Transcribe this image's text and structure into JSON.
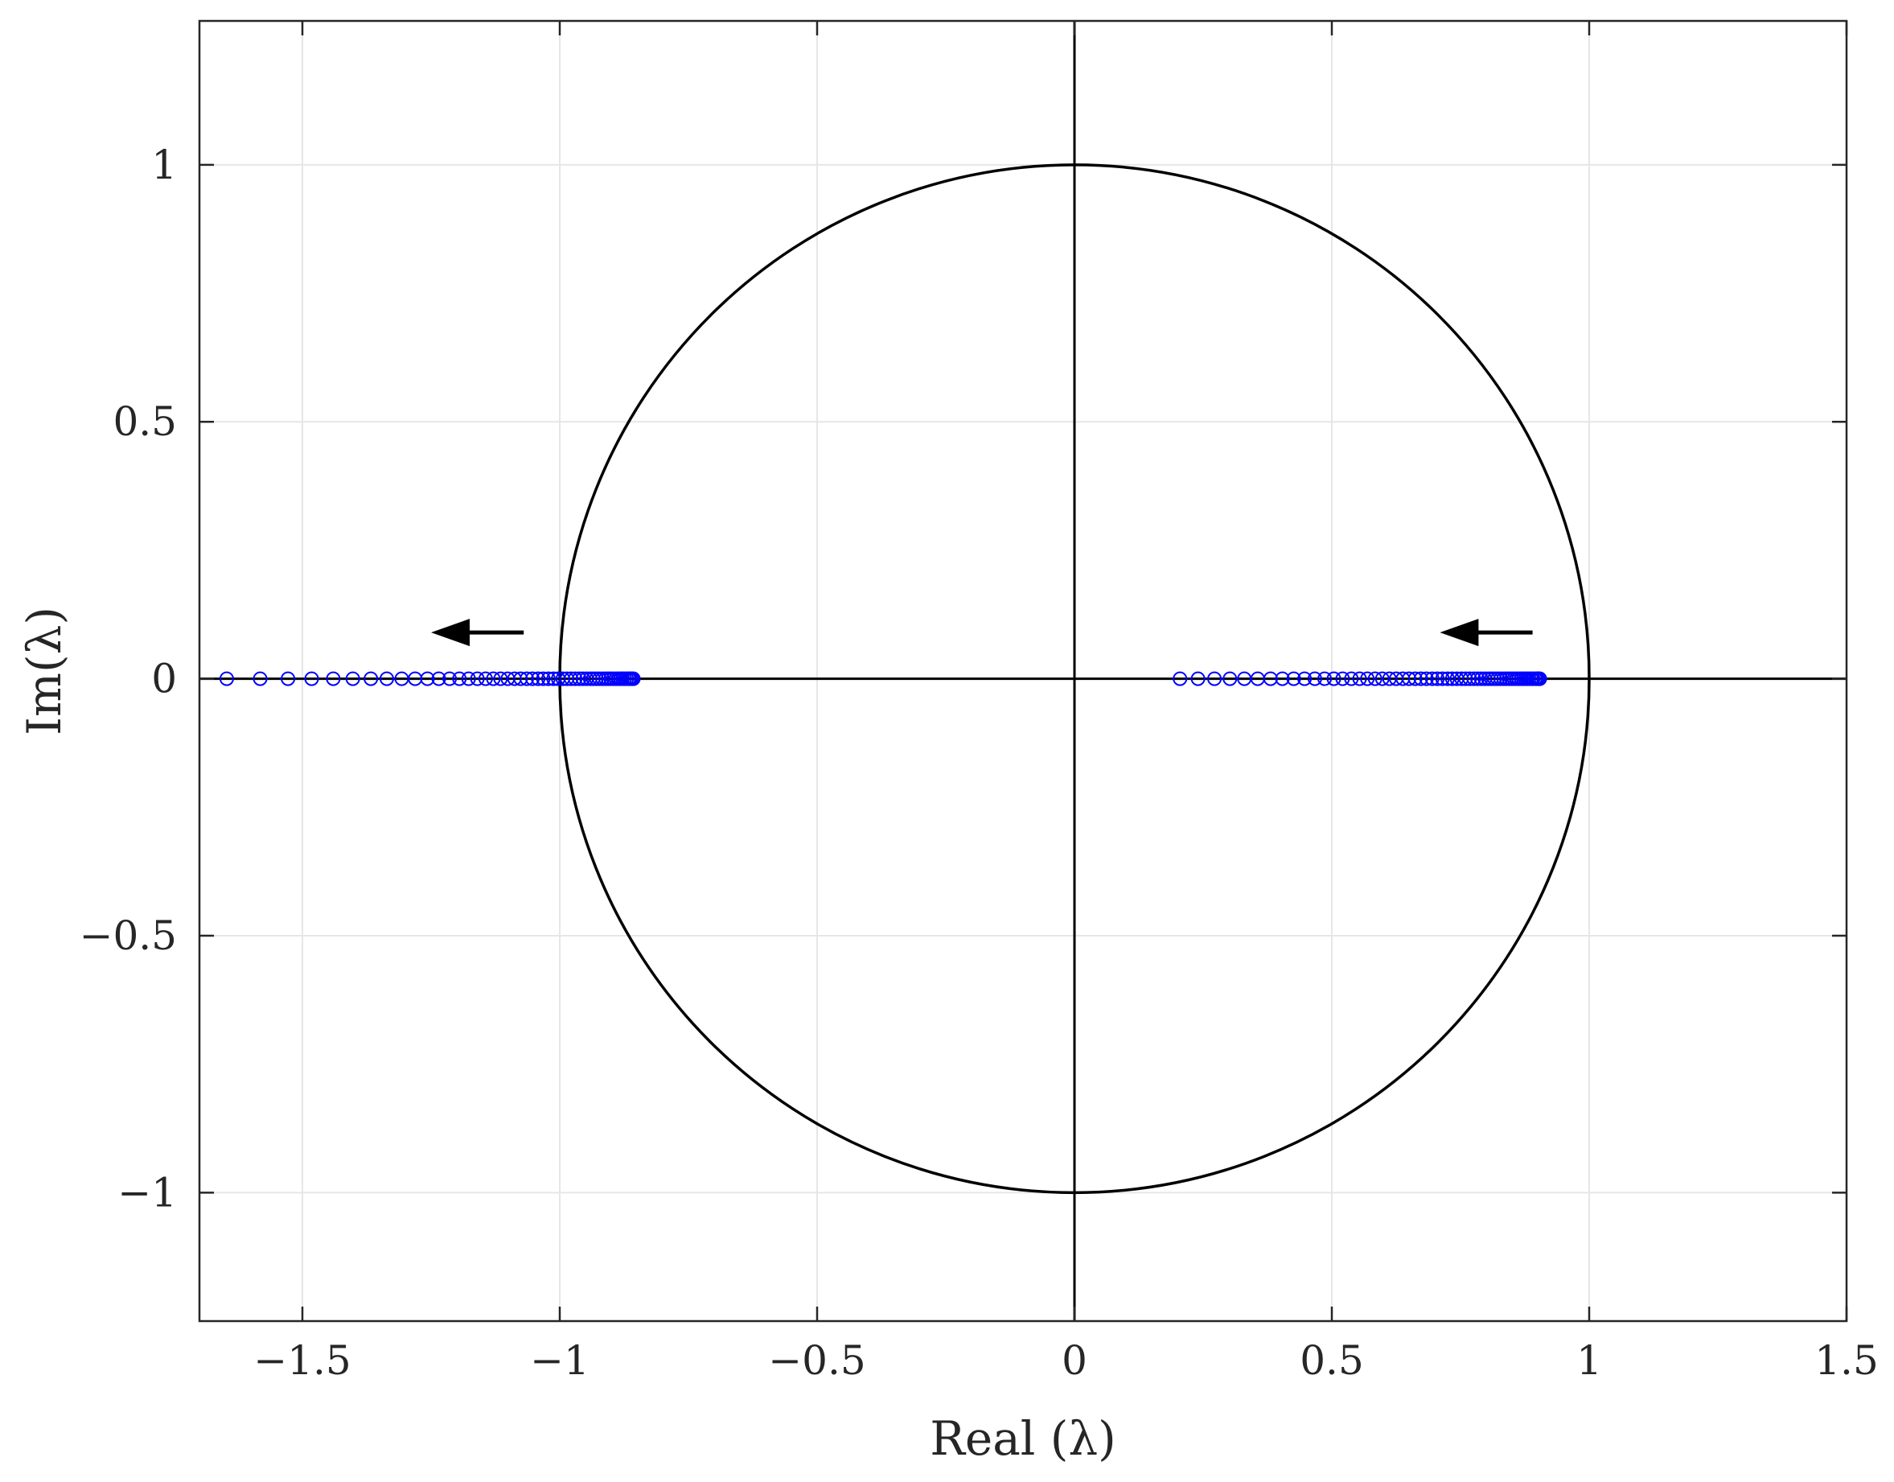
{
  "chart_data": {
    "type": "scatter",
    "title": "",
    "xlabel": "Real (λ)",
    "ylabel": "Im(λ)",
    "xlim": [
      -1.7,
      1.5
    ],
    "ylim": [
      -1.25,
      1.28
    ],
    "xticks": [
      -1.5,
      -1,
      -0.5,
      0,
      0.5,
      1,
      1.5
    ],
    "xtick_labels": [
      "−1.5",
      "−1",
      "−0.5",
      "0",
      "0.5",
      "1",
      "1.5"
    ],
    "yticks": [
      -1,
      -0.5,
      0,
      0.5,
      1
    ],
    "ytick_labels": [
      "−1",
      "−0.5",
      "0",
      "0.5",
      "1"
    ],
    "grid": true,
    "unit_circle": {
      "center": [
        0,
        0
      ],
      "radius": 1,
      "color": "#000000"
    },
    "axis_lines_through_origin": true,
    "marker": {
      "shape": "open-circle",
      "color": "#0000ff"
    },
    "series": [
      {
        "x": [
          -1.647,
          -1.582,
          -1.528,
          -1.482,
          -1.44,
          -1.402,
          -1.367,
          -1.336,
          -1.307,
          -1.281,
          -1.257,
          -1.235,
          -1.214,
          -1.195,
          -1.177,
          -1.16,
          -1.144,
          -1.129,
          -1.115,
          -1.101,
          -1.088,
          -1.076,
          -1.064,
          -1.053,
          -1.042,
          -1.032,
          -1.022,
          -1.012,
          -1.003,
          -0.994,
          -0.986,
          -0.978,
          -0.97,
          -0.962,
          -0.955,
          -0.948,
          -0.941,
          -0.935,
          -0.929,
          -0.923,
          -0.917,
          -0.911,
          -0.906,
          -0.901,
          -0.896,
          -0.891,
          -0.886,
          -0.882,
          -0.878,
          -0.874,
          -0.87,
          -0.866,
          -0.863,
          -0.86,
          -0.857
        ],
        "y": [
          0,
          0,
          0,
          0,
          0,
          0,
          0,
          0,
          0,
          0,
          0,
          0,
          0,
          0,
          0,
          0,
          0,
          0,
          0,
          0,
          0,
          0,
          0,
          0,
          0,
          0,
          0,
          0,
          0,
          0,
          0,
          0,
          0,
          0,
          0,
          0,
          0,
          0,
          0,
          0,
          0,
          0,
          0,
          0,
          0,
          0,
          0,
          0,
          0,
          0,
          0,
          0,
          0,
          0,
          0
        ]
      },
      {
        "x": [
          0.205,
          0.24,
          0.272,
          0.302,
          0.33,
          0.356,
          0.381,
          0.404,
          0.426,
          0.447,
          0.467,
          0.486,
          0.504,
          0.521,
          0.538,
          0.554,
          0.569,
          0.584,
          0.598,
          0.612,
          0.625,
          0.638,
          0.65,
          0.662,
          0.673,
          0.684,
          0.695,
          0.705,
          0.715,
          0.725,
          0.734,
          0.743,
          0.752,
          0.76,
          0.768,
          0.776,
          0.783,
          0.79,
          0.797,
          0.804,
          0.81,
          0.816,
          0.822,
          0.828,
          0.834,
          0.839,
          0.844,
          0.849,
          0.854,
          0.859,
          0.863,
          0.868,
          0.872,
          0.876,
          0.88,
          0.884,
          0.888,
          0.891,
          0.895,
          0.898,
          0.9,
          0.902,
          0.904
        ],
        "y": [
          0,
          0,
          0,
          0,
          0,
          0,
          0,
          0,
          0,
          0,
          0,
          0,
          0,
          0,
          0,
          0,
          0,
          0,
          0,
          0,
          0,
          0,
          0,
          0,
          0,
          0,
          0,
          0,
          0,
          0,
          0,
          0,
          0,
          0,
          0,
          0,
          0,
          0,
          0,
          0,
          0,
          0,
          0,
          0,
          0,
          0,
          0,
          0,
          0,
          0,
          0,
          0,
          0,
          0,
          0,
          0,
          0,
          0,
          0,
          0,
          0,
          0,
          0
        ]
      }
    ],
    "annotations": [
      {
        "type": "arrow",
        "from": [
          -1.07,
          0.09
        ],
        "to": [
          -1.25,
          0.09
        ],
        "color": "#000000"
      },
      {
        "type": "arrow",
        "from": [
          0.89,
          0.09
        ],
        "to": [
          0.71,
          0.09
        ],
        "color": "#000000"
      }
    ],
    "colors": {
      "grid": "#e6e6e6",
      "axes": "#262626",
      "lines": "#000000"
    }
  }
}
